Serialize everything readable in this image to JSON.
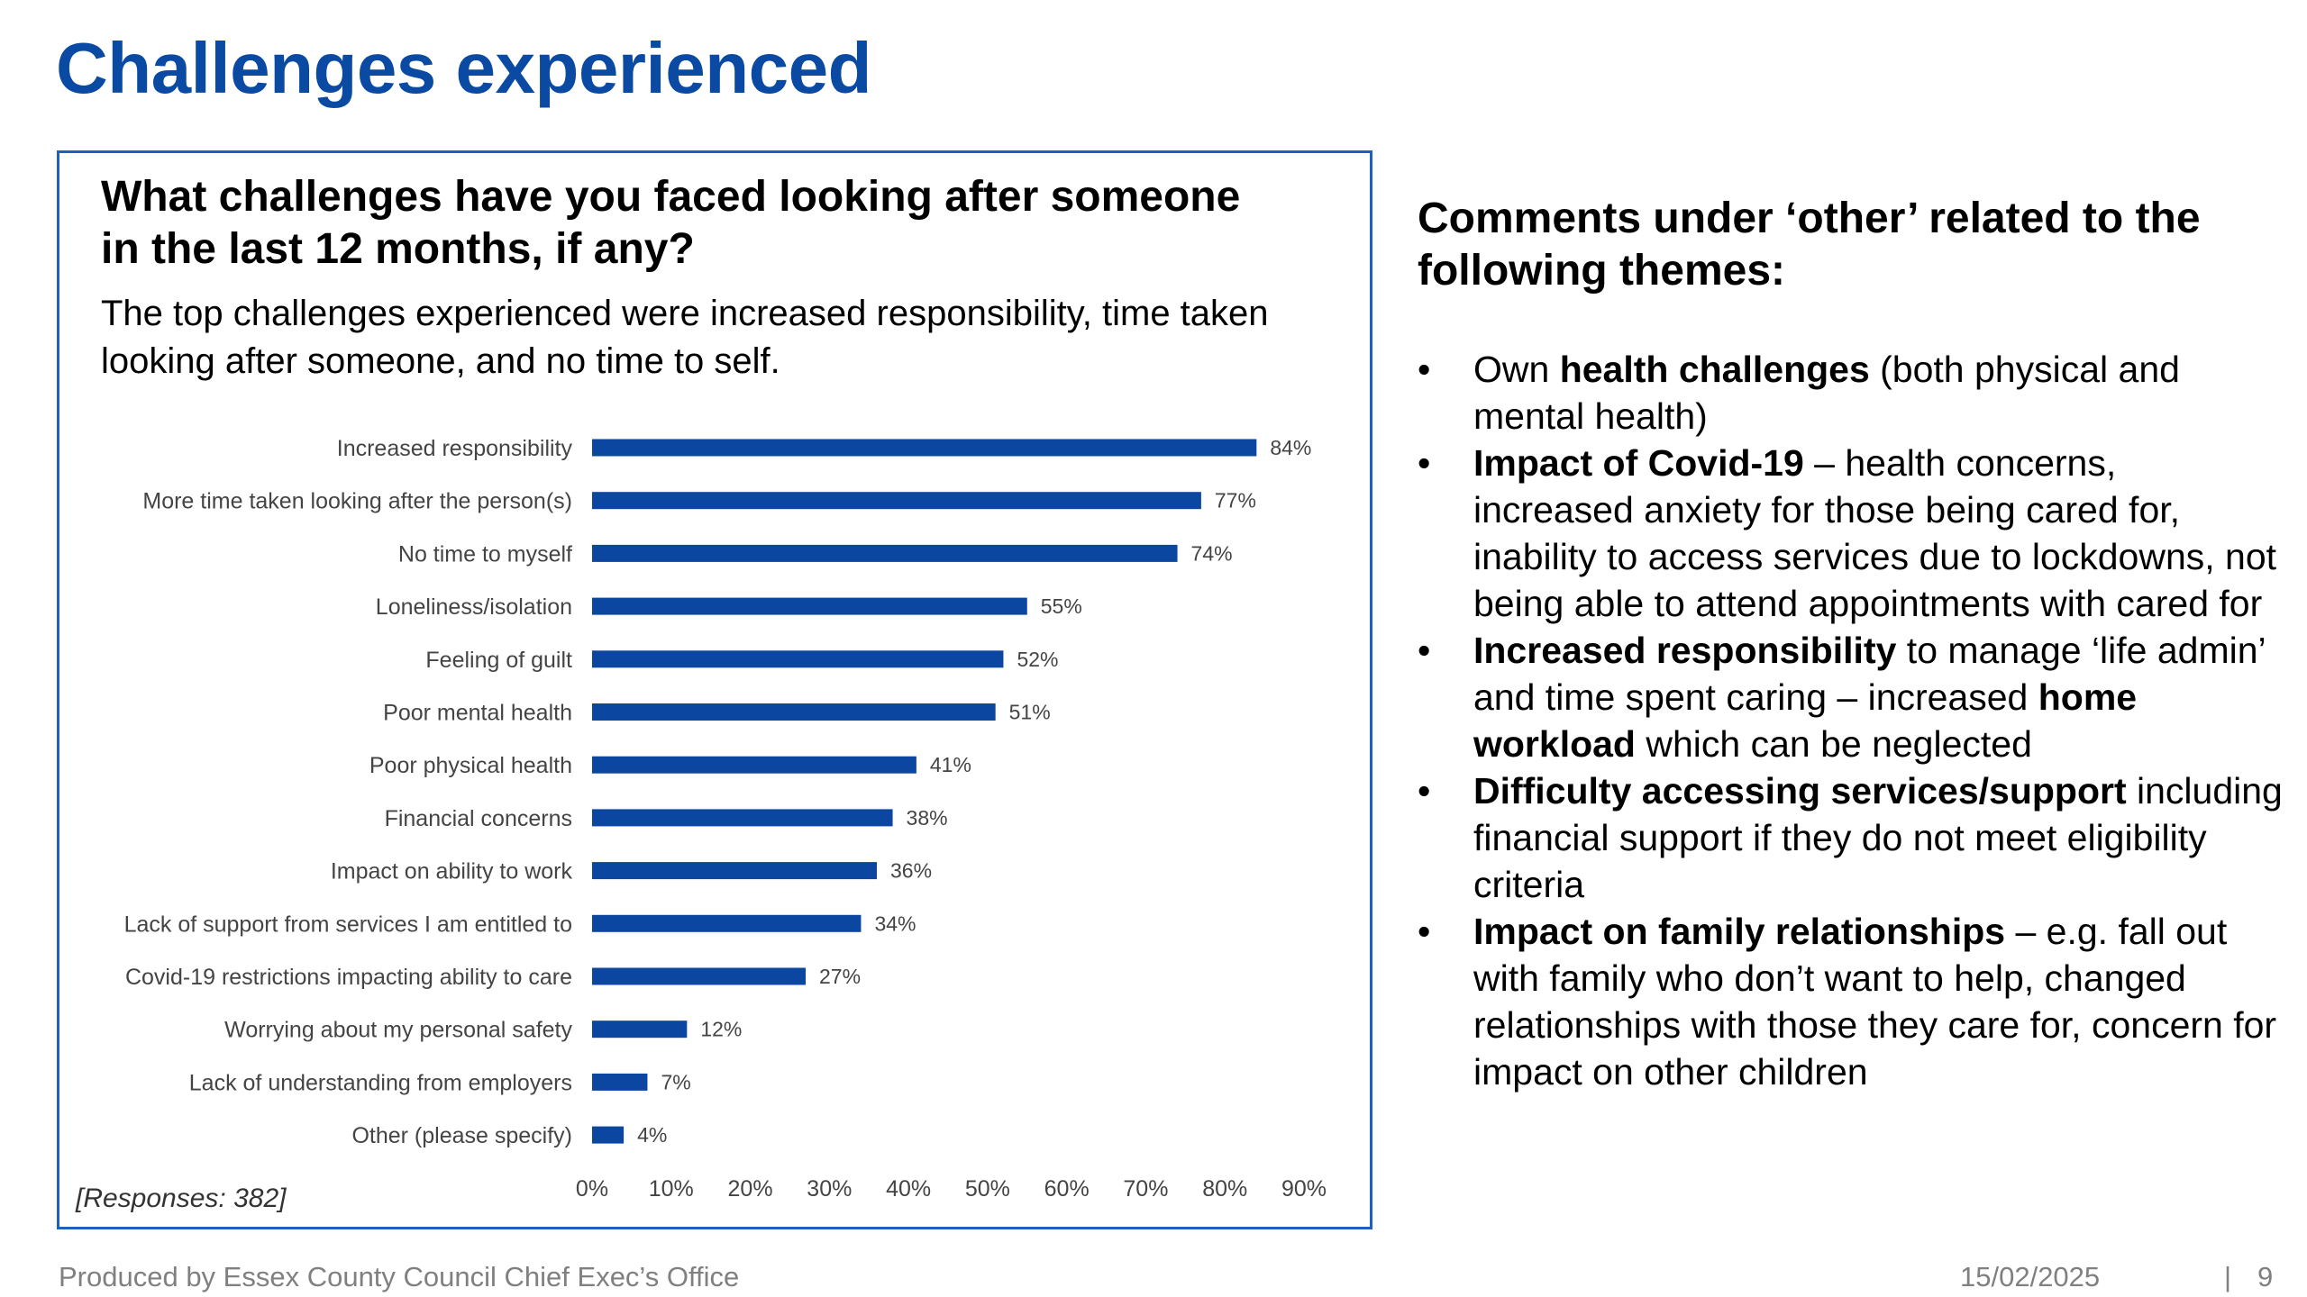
{
  "page": {
    "title": "Challenges experienced",
    "responses_note": "[Responses: 382]"
  },
  "colors": {
    "title": "#0b4aa2",
    "bar": "#0b47a1",
    "panel_border": "#1f5fbf"
  },
  "chart_data": {
    "type": "bar",
    "orientation": "horizontal",
    "title": "What challenges have you faced looking after someone in the last 12 months, if any?",
    "subtitle": "The top challenges experienced were increased responsibility, time taken looking after someone, and no time to self.",
    "categories": [
      "Increased responsibility",
      "More time taken looking after the person(s)",
      "No time to myself",
      "Loneliness/isolation",
      "Feeling of guilt",
      "Poor mental health",
      "Poor physical health",
      "Financial concerns",
      "Impact on ability to work",
      "Lack of support from services I am entitled to",
      "Covid-19 restrictions impacting ability to care",
      "Worrying about my personal safety",
      "Lack of understanding from employers",
      "Other (please specify)"
    ],
    "values": [
      84,
      77,
      74,
      55,
      52,
      51,
      41,
      38,
      36,
      34,
      27,
      12,
      7,
      4
    ],
    "value_labels": [
      "84%",
      "77%",
      "74%",
      "55%",
      "52%",
      "51%",
      "41%",
      "38%",
      "36%",
      "34%",
      "27%",
      "12%",
      "7%",
      "4%"
    ],
    "unit": "%",
    "xlim": [
      0,
      90
    ],
    "x_ticks": [
      0,
      10,
      20,
      30,
      40,
      50,
      60,
      70,
      80,
      90
    ],
    "x_tick_labels": [
      "0%",
      "10%",
      "20%",
      "30%",
      "40%",
      "50%",
      "60%",
      "70%",
      "80%",
      "90%"
    ],
    "grid": false,
    "legend": "none"
  },
  "themes": {
    "title": "Comments under ‘other’ related to the following themes:",
    "bullet": "•",
    "items": [
      {
        "pre": "Own ",
        "bold": "health challenges",
        "post": " (both physical and mental health)"
      },
      {
        "pre": "",
        "bold": "Impact of Covid-19",
        "post": " – health concerns, increased anxiety for those being cared for, inability to access services due to lockdowns, not being able to attend appointments with cared for"
      },
      {
        "pre": "",
        "bold": "Increased responsibility",
        "post": " to manage ‘life admin’ and time spent caring – increased ",
        "bold2": "home workload",
        "post2": " which can be neglected"
      },
      {
        "pre": "",
        "bold": "Difficulty accessing services/support",
        "post": " including financial support if they do not meet eligibility criteria"
      },
      {
        "pre": "",
        "bold": "Impact on family relationships",
        "post": " – e.g. fall out with family who don’t want to help, changed relationships with those they care for, concern for impact on other children"
      }
    ]
  },
  "footer": {
    "produced_by": "Produced by Essex County Council Chief Exec’s Office",
    "date": "15/02/2025",
    "separator": "|",
    "page_number": "9"
  }
}
